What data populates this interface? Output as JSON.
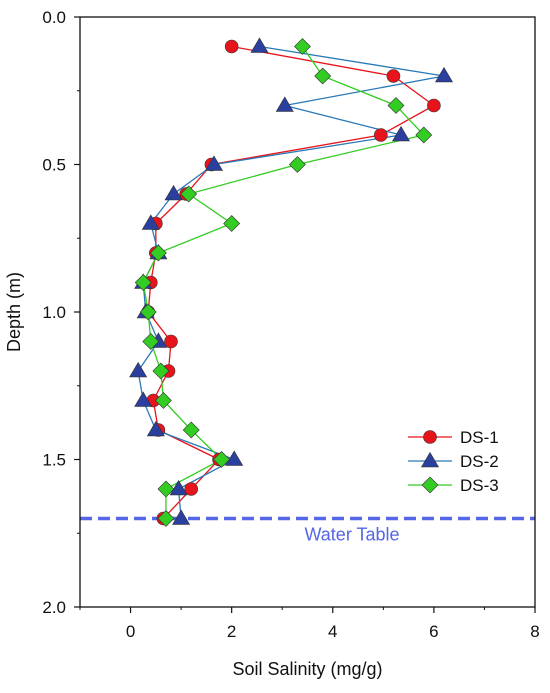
{
  "chart_data": {
    "type": "line",
    "xlabel": "Soil Salinity (mg/g)",
    "ylabel": "Depth (m)",
    "xlim": [
      -1,
      8
    ],
    "ylim": [
      0.0,
      2.0
    ],
    "y_inverted": true,
    "x_ticks": [
      0,
      2,
      4,
      6,
      8
    ],
    "x_tick_labels": [
      "0",
      "2",
      "4",
      "6",
      "8"
    ],
    "y_ticks": [
      0.0,
      0.5,
      1.0,
      1.5,
      2.0
    ],
    "y_tick_labels": [
      "0.0",
      "0.5",
      "1.0",
      "1.5",
      "2.0"
    ],
    "grid": false,
    "legend_position": "bottom-right",
    "series": [
      {
        "name": "DS-1",
        "color": "#e8141c",
        "marker": "circle",
        "points": [
          [
            2.0,
            0.1
          ],
          [
            5.2,
            0.2
          ],
          [
            6.0,
            0.3
          ],
          [
            4.95,
            0.4
          ],
          [
            1.6,
            0.5
          ],
          [
            1.1,
            0.6
          ],
          [
            0.5,
            0.7
          ],
          [
            0.5,
            0.8
          ],
          [
            0.4,
            0.9
          ],
          [
            0.35,
            1.0
          ],
          [
            0.8,
            1.1
          ],
          [
            0.75,
            1.2
          ],
          [
            0.45,
            1.3
          ],
          [
            0.55,
            1.4
          ],
          [
            1.75,
            1.5
          ],
          [
            1.2,
            1.6
          ],
          [
            0.65,
            1.7
          ]
        ]
      },
      {
        "name": "DS-2",
        "color": "#2a3f9e",
        "line_color": "#2a7ab8",
        "marker": "triangle",
        "points": [
          [
            2.55,
            0.1
          ],
          [
            6.2,
            0.2
          ],
          [
            3.05,
            0.3
          ],
          [
            5.35,
            0.4
          ],
          [
            1.65,
            0.5
          ],
          [
            0.85,
            0.6
          ],
          [
            0.4,
            0.7
          ],
          [
            0.55,
            0.8
          ],
          [
            0.25,
            0.9
          ],
          [
            0.3,
            1.0
          ],
          [
            0.55,
            1.1
          ],
          [
            0.15,
            1.2
          ],
          [
            0.25,
            1.3
          ],
          [
            0.5,
            1.4
          ],
          [
            2.05,
            1.5
          ],
          [
            0.95,
            1.6
          ],
          [
            1.0,
            1.7
          ]
        ]
      },
      {
        "name": "DS-3",
        "color": "#33cc22",
        "marker": "diamond",
        "points": [
          [
            3.4,
            0.1
          ],
          [
            3.8,
            0.2
          ],
          [
            5.25,
            0.3
          ],
          [
            5.8,
            0.4
          ],
          [
            3.3,
            0.5
          ],
          [
            1.15,
            0.6
          ],
          [
            2.0,
            0.7
          ],
          [
            0.55,
            0.8
          ],
          [
            0.25,
            0.9
          ],
          [
            0.35,
            1.0
          ],
          [
            0.4,
            1.1
          ],
          [
            0.6,
            1.2
          ],
          [
            0.65,
            1.3
          ],
          [
            1.2,
            1.4
          ],
          [
            1.8,
            1.5
          ],
          [
            0.7,
            1.6
          ],
          [
            0.7,
            1.7
          ]
        ]
      }
    ],
    "reference_line": {
      "label": "Water Table",
      "y": 1.7,
      "color": "#5566e6",
      "style": "dashed"
    }
  }
}
